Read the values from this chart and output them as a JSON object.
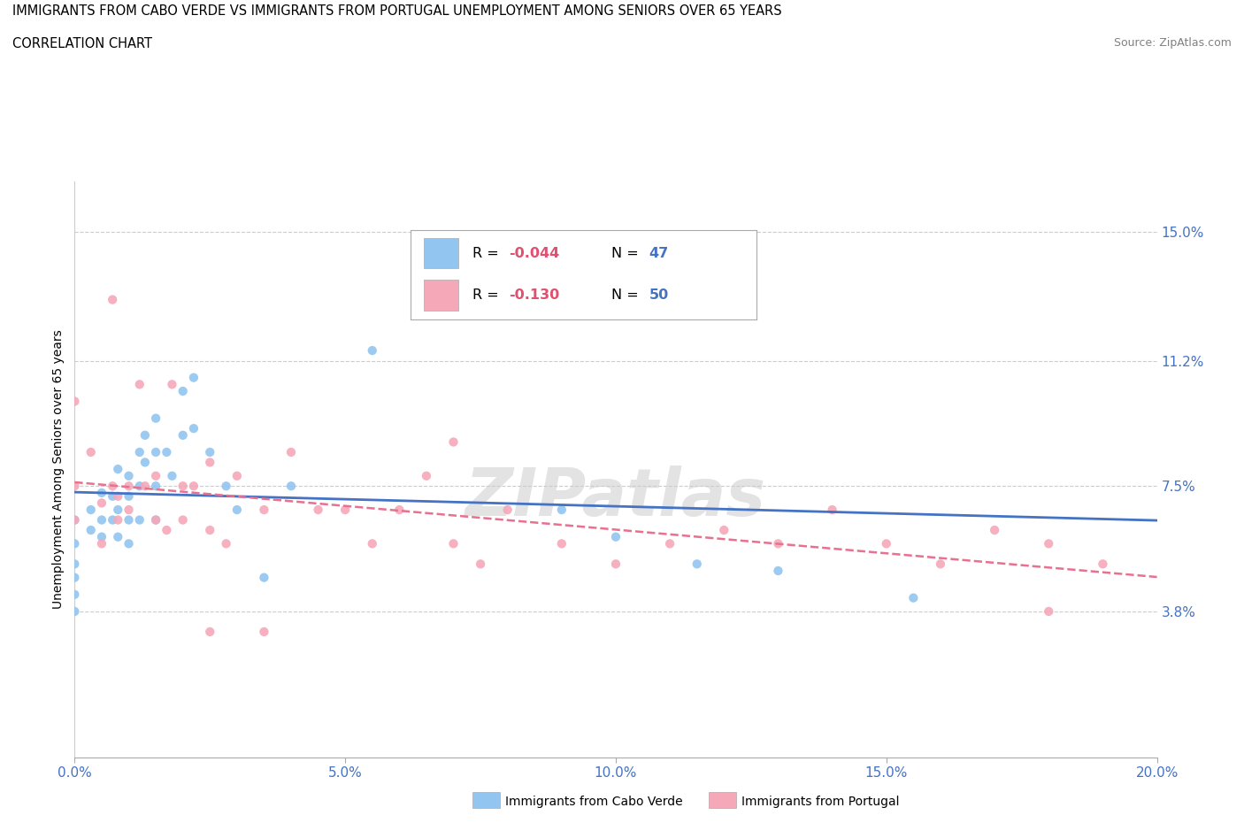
{
  "title_line1": "IMMIGRANTS FROM CABO VERDE VS IMMIGRANTS FROM PORTUGAL UNEMPLOYMENT AMONG SENIORS OVER 65 YEARS",
  "title_line2": "CORRELATION CHART",
  "source_text": "Source: ZipAtlas.com",
  "ylabel": "Unemployment Among Seniors over 65 years",
  "xlim": [
    0.0,
    0.2
  ],
  "ylim": [
    -0.005,
    0.165
  ],
  "yticks": [
    0.038,
    0.075,
    0.112,
    0.15
  ],
  "ytick_labels": [
    "3.8%",
    "7.5%",
    "11.2%",
    "15.0%"
  ],
  "xticks": [
    0.0,
    0.05,
    0.1,
    0.15,
    0.2
  ],
  "xtick_labels": [
    "0.0%",
    "5.0%",
    "10.0%",
    "15.0%",
    "20.0%"
  ],
  "cabo_verde_x": [
    0.0,
    0.0,
    0.0,
    0.0,
    0.0,
    0.0,
    0.003,
    0.003,
    0.005,
    0.005,
    0.005,
    0.007,
    0.007,
    0.008,
    0.008,
    0.008,
    0.01,
    0.01,
    0.01,
    0.01,
    0.012,
    0.012,
    0.012,
    0.013,
    0.013,
    0.015,
    0.015,
    0.015,
    0.015,
    0.017,
    0.018,
    0.02,
    0.02,
    0.022,
    0.022,
    0.025,
    0.028,
    0.03,
    0.035,
    0.04,
    0.055,
    0.07,
    0.09,
    0.1,
    0.115,
    0.13,
    0.155
  ],
  "cabo_verde_y": [
    0.065,
    0.058,
    0.052,
    0.048,
    0.043,
    0.038,
    0.068,
    0.062,
    0.073,
    0.065,
    0.06,
    0.072,
    0.065,
    0.08,
    0.068,
    0.06,
    0.078,
    0.072,
    0.065,
    0.058,
    0.085,
    0.075,
    0.065,
    0.09,
    0.082,
    0.095,
    0.085,
    0.075,
    0.065,
    0.085,
    0.078,
    0.103,
    0.09,
    0.092,
    0.107,
    0.085,
    0.075,
    0.068,
    0.048,
    0.075,
    0.115,
    0.13,
    0.068,
    0.06,
    0.052,
    0.05,
    0.042
  ],
  "portugal_x": [
    0.0,
    0.0,
    0.0,
    0.003,
    0.005,
    0.005,
    0.007,
    0.007,
    0.008,
    0.008,
    0.01,
    0.01,
    0.012,
    0.013,
    0.015,
    0.015,
    0.017,
    0.018,
    0.02,
    0.02,
    0.022,
    0.025,
    0.025,
    0.028,
    0.03,
    0.035,
    0.04,
    0.045,
    0.05,
    0.055,
    0.06,
    0.065,
    0.07,
    0.075,
    0.08,
    0.09,
    0.1,
    0.11,
    0.12,
    0.13,
    0.14,
    0.15,
    0.16,
    0.17,
    0.18,
    0.19,
    0.18,
    0.025,
    0.035,
    0.07
  ],
  "portugal_y": [
    0.075,
    0.065,
    0.1,
    0.085,
    0.07,
    0.058,
    0.13,
    0.075,
    0.072,
    0.065,
    0.075,
    0.068,
    0.105,
    0.075,
    0.078,
    0.065,
    0.062,
    0.105,
    0.075,
    0.065,
    0.075,
    0.062,
    0.082,
    0.058,
    0.078,
    0.068,
    0.085,
    0.068,
    0.068,
    0.058,
    0.068,
    0.078,
    0.058,
    0.052,
    0.068,
    0.058,
    0.052,
    0.058,
    0.062,
    0.058,
    0.068,
    0.058,
    0.052,
    0.062,
    0.058,
    0.052,
    0.038,
    0.032,
    0.032,
    0.088
  ],
  "cabo_verde_color": "#92c5f0",
  "portugal_color": "#f5a8b8",
  "cabo_verde_line_color": "#4472c4",
  "portugal_line_color": "#e87090",
  "watermark": "ZIPatlas",
  "background_color": "#ffffff",
  "grid_color": "#cccccc",
  "tick_label_color": "#4472c4",
  "legend_text_color_pink": "#e05070",
  "legend_text_color_blue": "#4472c4",
  "cabo_verde_label": "Immigrants from Cabo Verde",
  "portugal_label": "Immigrants from Portugal",
  "R_cabo": "-0.044",
  "N_cabo": "47",
  "R_port": "-0.130",
  "N_port": "50"
}
